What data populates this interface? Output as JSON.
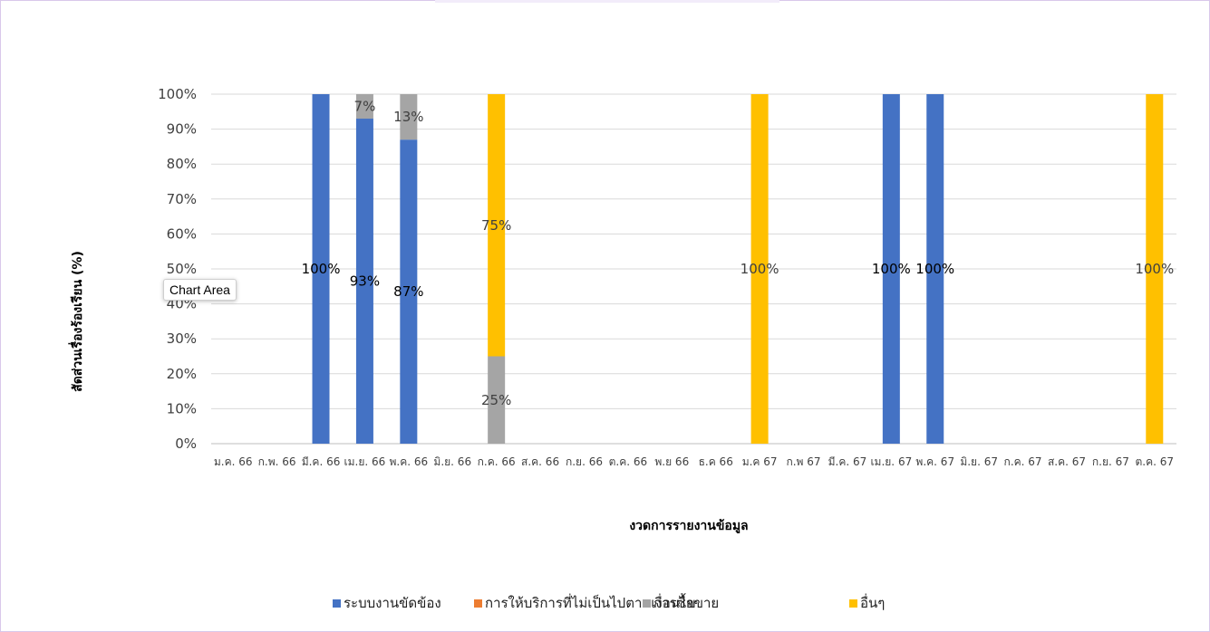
{
  "chart_data": {
    "type": "bar",
    "stacked": true,
    "percent": true,
    "xlabel": "งวดการรายงานข้อมูล",
    "ylabel": "สัดส่วนเรื่องร้องเรียน (%)",
    "ylim": [
      0,
      100
    ],
    "yticks": [
      "0%",
      "10%",
      "20%",
      "30%",
      "40%",
      "50%",
      "60%",
      "70%",
      "80%",
      "90%",
      "100%"
    ],
    "grid": true,
    "legend_position": "bottom",
    "categories": [
      "ม.ค. 66",
      "ก.พ. 66",
      "มี.ค. 66",
      "เม.ย. 66",
      "พ.ค. 66",
      "มิ.ย. 66",
      "ก.ค. 66",
      "ส.ค. 66",
      "ก.ย. 66",
      "ต.ค. 66",
      "พ.ย 66",
      "ธ.ค 66",
      "ม.ค 67",
      "ก.พ 67",
      "มี.ค. 67",
      "เม.ย. 67",
      "พ.ค. 67",
      "มิ.ย. 67",
      "ก.ค. 67",
      "ส.ค. 67",
      "ก.ย. 67",
      "ต.ค. 67"
    ],
    "series": [
      {
        "name": "ระบบงานขัดข้อง",
        "color": "#4472c4",
        "values": [
          0,
          0,
          100,
          93,
          87,
          0,
          0,
          0,
          0,
          0,
          0,
          0,
          0,
          0,
          0,
          100,
          100,
          0,
          0,
          0,
          0,
          0
        ]
      },
      {
        "name": "การให้บริการที่ไม่เป็นไปตามเงื่อนไข",
        "color": "#ed7d31",
        "values": [
          0,
          0,
          0,
          0,
          0,
          0,
          0,
          0,
          0,
          0,
          0,
          0,
          0,
          0,
          0,
          0,
          0,
          0,
          0,
          0,
          0,
          0
        ]
      },
      {
        "name": "การซื้อขาย",
        "color": "#a5a5a5",
        "values": [
          0,
          0,
          0,
          7,
          13,
          0,
          25,
          0,
          0,
          0,
          0,
          0,
          0,
          0,
          0,
          0,
          0,
          0,
          0,
          0,
          0,
          0
        ]
      },
      {
        "name": "อื่นๆ",
        "color": "#ffc000",
        "values": [
          0,
          0,
          0,
          0,
          0,
          0,
          75,
          0,
          0,
          0,
          0,
          0,
          100,
          0,
          0,
          0,
          0,
          0,
          0,
          0,
          0,
          100
        ]
      }
    ]
  },
  "tooltip": {
    "text": "Chart Area"
  }
}
